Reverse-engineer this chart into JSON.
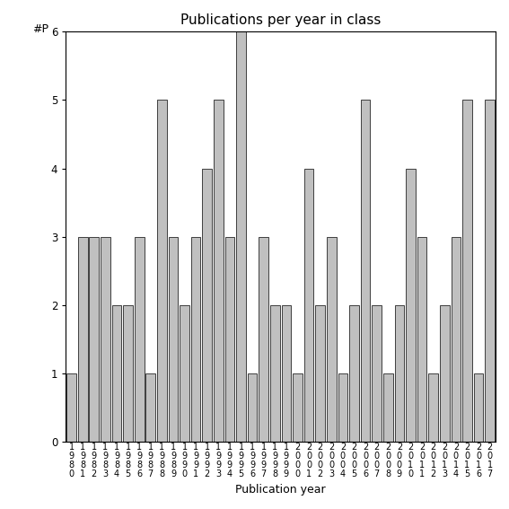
{
  "title": "Publications per year in class",
  "xlabel": "Publication year",
  "ylabel": "#P",
  "years": [
    "1980",
    "1981",
    "1982",
    "1983",
    "1984",
    "1985",
    "1986",
    "1987",
    "1988",
    "1989",
    "1990",
    "1991",
    "1992",
    "1993",
    "1994",
    "1995",
    "1996",
    "1997",
    "1998",
    "1999",
    "2000",
    "2001",
    "2002",
    "2003",
    "2004",
    "2005",
    "2006",
    "2007",
    "2008",
    "2009",
    "2010",
    "2011",
    "2012",
    "2013",
    "2014",
    "2015",
    "2016",
    "2017"
  ],
  "values": [
    1,
    3,
    3,
    3,
    2,
    2,
    3,
    1,
    5,
    3,
    2,
    3,
    4,
    5,
    3,
    6,
    1,
    3,
    2,
    2,
    1,
    4,
    2,
    3,
    1,
    2,
    5,
    2,
    1,
    2,
    4,
    3,
    1,
    2,
    3,
    5,
    1,
    5
  ],
  "bar_color": "#c0c0c0",
  "bar_edge_color": "#000000",
  "ylim": [
    0,
    6
  ],
  "yticks": [
    0,
    1,
    2,
    3,
    4,
    5,
    6
  ],
  "background_color": "#ffffff",
  "title_fontsize": 11,
  "axis_label_fontsize": 9,
  "tick_label_fontsize": 7,
  "bar_width": 0.85
}
